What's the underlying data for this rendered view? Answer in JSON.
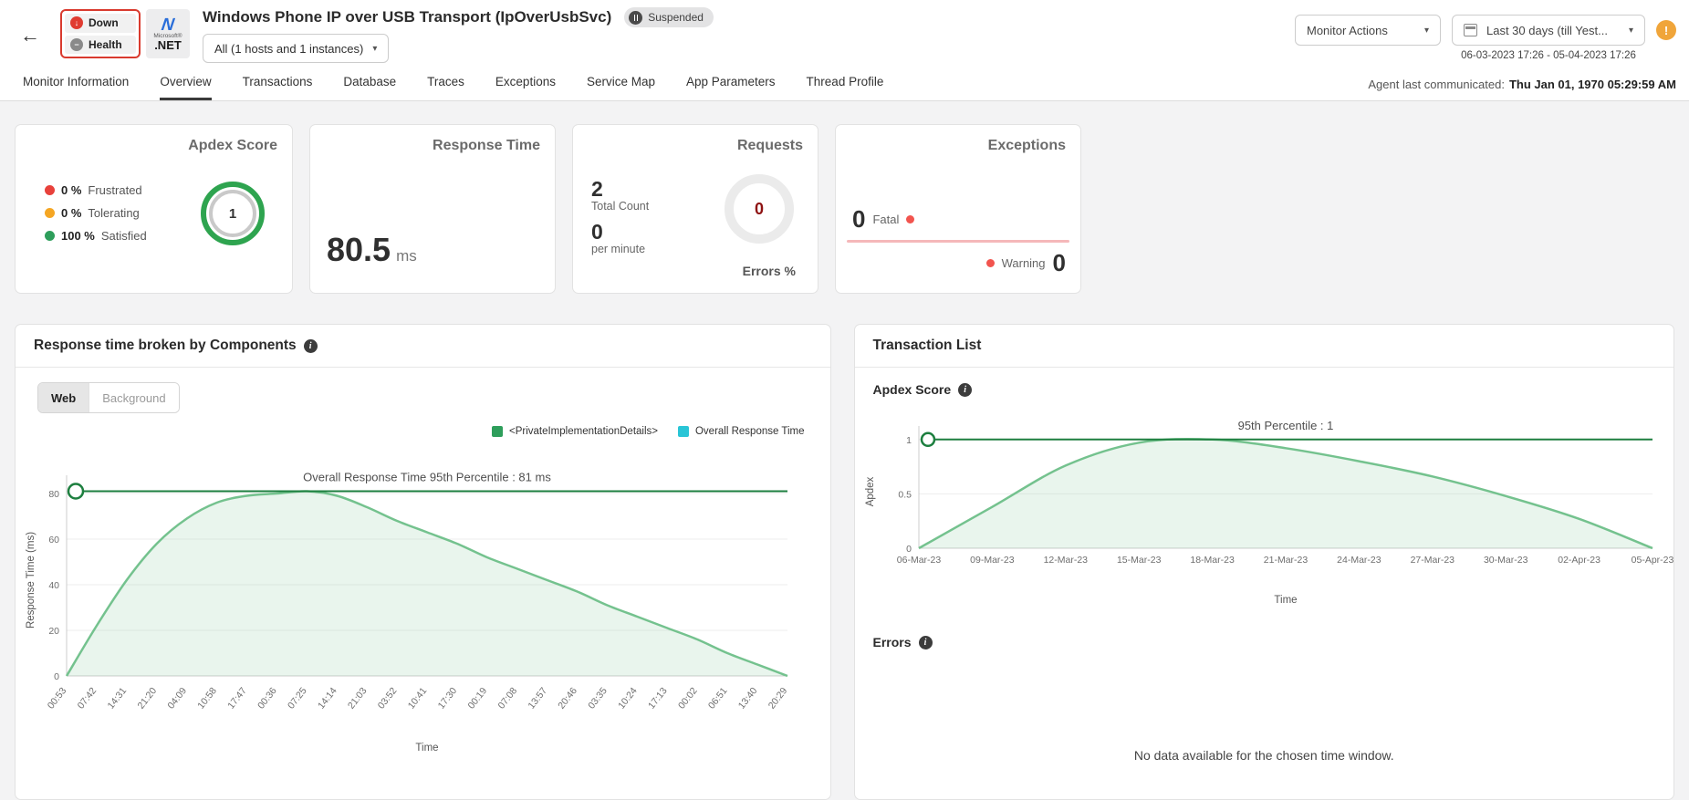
{
  "colors": {
    "chart_line": "#74c28e",
    "chart_fill": "rgba(116,194,142,0.16)",
    "percentile_line": "#1d7f3f",
    "frustrated_red": "#e8413b",
    "tolerating_orange": "#f5a623",
    "satisfied_green": "#2e9e5b",
    "legend_teal": "#29c5d6",
    "errors_dark_red": "#8e1212",
    "fatal_pink": "#f5b8ba"
  },
  "header": {
    "back_icon": "←",
    "status": {
      "down_label": "Down",
      "health_label": "Health"
    },
    "logo": {
      "brand_top": "Microsoft®",
      "brand_bottom": ".NET"
    },
    "title": "Windows Phone IP over USB Transport (IpOverUsbSvc)",
    "suspended_badge": "Suspended",
    "host_selector": "All (1 hosts and 1 instances)",
    "monitor_actions_label": "Monitor Actions",
    "date_range_label": "Last 30 days (till Yest...",
    "date_range_detail": "06-03-2023 17:26 - 05-04-2023 17:26",
    "warning_icon": "!"
  },
  "tabs": {
    "items": [
      "Monitor Information",
      "Overview",
      "Transactions",
      "Database",
      "Traces",
      "Exceptions",
      "Service Map",
      "App Parameters",
      "Thread Profile"
    ],
    "active": "Overview",
    "agent_last_label": "Agent last communicated:",
    "agent_last_value": "Thu Jan 01, 1970 05:29:59 AM"
  },
  "cards": {
    "apdex": {
      "title": "Apdex Score",
      "score": "1",
      "legend": [
        {
          "pct": "0 %",
          "label": "Frustrated",
          "color": "#e8413b"
        },
        {
          "pct": "0 %",
          "label": "Tolerating",
          "color": "#f5a623"
        },
        {
          "pct": "100 %",
          "label": "Satisfied",
          "color": "#2e9e5b"
        }
      ]
    },
    "response_time": {
      "title": "Response Time",
      "value": "80.5",
      "unit": "ms"
    },
    "requests": {
      "title": "Requests",
      "total_count": "2",
      "total_count_label": "Total Count",
      "per_minute": "0",
      "per_minute_label": "per minute",
      "errors_value": "0",
      "errors_label": "Errors %"
    },
    "exceptions": {
      "title": "Exceptions",
      "fatal_value": "0",
      "fatal_label": "Fatal",
      "warning_label": "Warning",
      "warning_value": "0"
    }
  },
  "left_panel": {
    "title": "Response time broken by Components",
    "toggle": {
      "web": "Web",
      "background": "Background"
    },
    "legend": [
      {
        "label": "<PrivateImplementationDetails>",
        "color": "#2e9e5b"
      },
      {
        "label": "Overall Response Time",
        "color": "#29c5d6"
      }
    ]
  },
  "right_panel": {
    "title": "Transaction List",
    "apdex_heading": "Apdex Score",
    "errors_heading": "Errors",
    "no_data_message": "No data available for the chosen time window."
  },
  "chart_data": [
    {
      "type": "area",
      "name": "response-time-by-components",
      "annotation": "Overall Response Time 95th Percentile : 81 ms",
      "percentile_value": 81,
      "categories": [
        "00:53",
        "07:42",
        "14:31",
        "21:20",
        "04:09",
        "10:58",
        "17:47",
        "00:36",
        "07:25",
        "14:14",
        "21:03",
        "03:52",
        "10:41",
        "17:30",
        "00:19",
        "07:08",
        "13:57",
        "20:46",
        "03:35",
        "10:24",
        "17:13",
        "00:02",
        "06:51",
        "13:40",
        "20:29"
      ],
      "series": [
        {
          "name": "Overall Response Time",
          "values": [
            0,
            22,
            42,
            58,
            69,
            76,
            79,
            80,
            81,
            79,
            74,
            68,
            63,
            58,
            52,
            47,
            42,
            37,
            31,
            26,
            21,
            16,
            10,
            5,
            0
          ]
        }
      ],
      "xlabel": "Time",
      "ylabel": "Response Time (ms)",
      "ylim": [
        0,
        84
      ],
      "yticks": [
        0,
        20,
        40,
        60,
        80
      ],
      "legend_position": "top-right",
      "grid": true
    },
    {
      "type": "area",
      "name": "transaction-apdex-trend",
      "annotation": "95th Percentile : 1",
      "percentile_value": 1,
      "categories": [
        "06-Mar-23",
        "09-Mar-23",
        "12-Mar-23",
        "15-Mar-23",
        "18-Mar-23",
        "21-Mar-23",
        "24-Mar-23",
        "27-Mar-23",
        "30-Mar-23",
        "02-Apr-23",
        "05-Apr-23"
      ],
      "series": [
        {
          "name": "Apdex",
          "values": [
            0,
            0.38,
            0.76,
            0.97,
            1.0,
            0.92,
            0.8,
            0.66,
            0.48,
            0.27,
            0
          ]
        }
      ],
      "xlabel": "Time",
      "ylabel": "Apdex",
      "ylim": [
        0,
        1.04
      ],
      "yticks": [
        0,
        0.5,
        1
      ],
      "legend_position": "none",
      "grid": true
    }
  ]
}
